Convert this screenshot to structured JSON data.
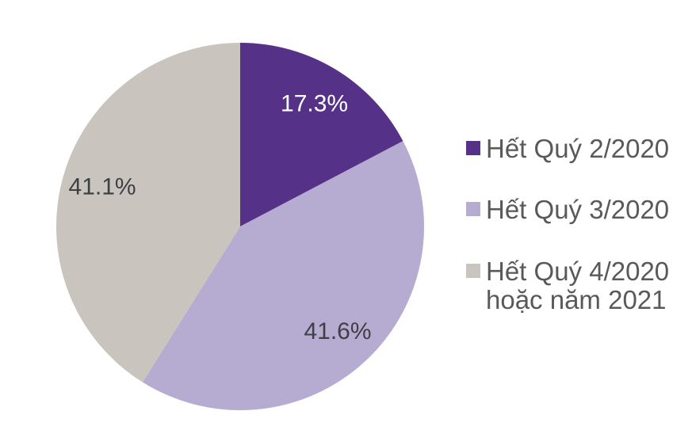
{
  "chart_data": {
    "type": "pie",
    "title": "",
    "legend_position": "right",
    "start_angle_deg": 0,
    "direction": "clockwise",
    "background_color": "#ffffff",
    "legend_text_color": "#595959",
    "slices": [
      {
        "label": "Hết Quý 2/2020",
        "legend_label": "Hết Quý 2/2020",
        "value": 17.3,
        "value_label": "17.3%",
        "color": "#553287",
        "value_label_color": "#ffffff"
      },
      {
        "label": "Hết Quý 3/2020",
        "legend_label": "Hết Quý 3/2020",
        "value": 41.6,
        "value_label": "41.6%",
        "color": "#b6abd1",
        "value_label_color": "#3f3f46"
      },
      {
        "label": "Hết Quý 4/2020 hoặc năm 2021",
        "legend_label": "Hết Quý 4/2020\nhoặc năm 2021",
        "value": 41.1,
        "value_label": "41.1%",
        "color": "#c9c4bd",
        "value_label_color": "#3f3f46"
      }
    ]
  }
}
